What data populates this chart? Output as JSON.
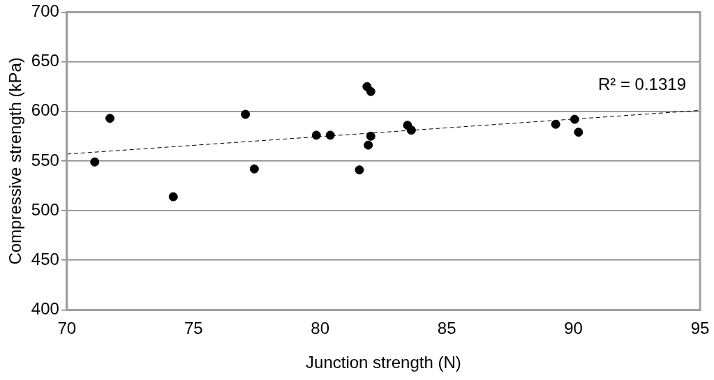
{
  "chart_data": {
    "type": "scatter",
    "xlabel": "Junction strength (N)",
    "ylabel": "Compressive strength (kPa)",
    "xlim": [
      70,
      95
    ],
    "xticks": [
      70,
      75,
      80,
      85,
      90,
      95
    ],
    "ylim": [
      400,
      700
    ],
    "yticks": [
      400,
      450,
      500,
      550,
      600,
      650,
      700
    ],
    "grid": "y",
    "legend": false,
    "marker": "circle",
    "annotations": [
      "R² = 0.1319"
    ],
    "series": [
      {
        "color": "#000000",
        "x": [
          71.1,
          71.7,
          74.2,
          77.05,
          77.4,
          79.85,
          80.4,
          81.55,
          81.85,
          82.0,
          82.0,
          81.9,
          83.45,
          83.6,
          89.3,
          90.05,
          90.2
        ],
        "values": [
          549,
          593,
          514,
          597,
          542,
          576,
          576,
          541,
          625,
          620,
          575,
          566,
          586,
          581,
          587,
          592,
          579
        ]
      },
      {
        "type": "line",
        "color": "#000000",
        "line_style": "dashed",
        "marker": "none",
        "x": [
          70,
          95
        ],
        "values": [
          557,
          601
        ]
      }
    ]
  }
}
